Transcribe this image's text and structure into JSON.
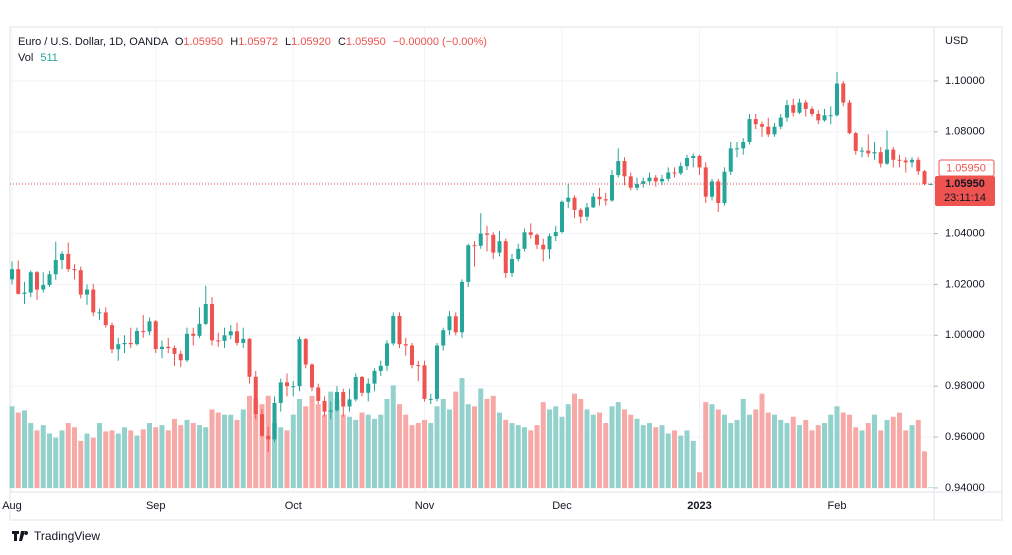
{
  "chart_data": {
    "type": "candlestick",
    "legend": {
      "symbol": "Euro / U.S. Dollar, 1D, OANDA",
      "open_label": "O",
      "open": "1.05950",
      "high_label": "H",
      "high": "1.05972",
      "low_label": "L",
      "low": "1.05920",
      "close_label": "C",
      "close": "1.05950",
      "change": "−0.00000 (−0.00%)",
      "volume_label": "Vol"
    },
    "y_label": "USD",
    "brand": "TradingView",
    "up_color": "#26a69a",
    "down_color": "#ef5350",
    "volume_up_color": "#93d2cc",
    "volume_down_color": "#f7a9a7",
    "ylim": [
      0.9384,
      1.1212
    ],
    "yticks": [
      {
        "value": 0.94,
        "label": "0.94000"
      },
      {
        "value": 0.96,
        "label": "0.96000"
      },
      {
        "value": 0.98,
        "label": "0.98000"
      },
      {
        "value": 1.0,
        "label": "1.00000"
      },
      {
        "value": 1.02,
        "label": "1.02000"
      },
      {
        "value": 1.04,
        "label": "1.04000"
      },
      {
        "value": 1.06,
        "label": "1.06000"
      },
      {
        "value": 1.08,
        "label": "1.08000"
      },
      {
        "value": 1.1,
        "label": "1.10000"
      }
    ],
    "grid": true,
    "last_price": {
      "value": 1.0595,
      "label": "1.05950"
    },
    "countdown": "23:11:14",
    "marker_label": "1.05950",
    "categories": [
      "Aug",
      null,
      null,
      null,
      null,
      null,
      null,
      null,
      null,
      null,
      null,
      null,
      null,
      null,
      null,
      null,
      null,
      null,
      null,
      null,
      null,
      null,
      null,
      "Sep",
      null,
      null,
      null,
      null,
      null,
      null,
      null,
      null,
      null,
      null,
      null,
      null,
      null,
      null,
      null,
      null,
      null,
      null,
      null,
      null,
      null,
      "Oct",
      null,
      null,
      null,
      null,
      null,
      null,
      null,
      null,
      null,
      null,
      null,
      null,
      null,
      null,
      null,
      null,
      null,
      null,
      null,
      null,
      "Nov",
      null,
      null,
      null,
      null,
      null,
      null,
      null,
      null,
      null,
      null,
      null,
      null,
      null,
      null,
      null,
      null,
      null,
      null,
      null,
      null,
      null,
      "Dec",
      null,
      null,
      null,
      null,
      null,
      null,
      null,
      null,
      null,
      null,
      null,
      null,
      null,
      null,
      null,
      null,
      null,
      null,
      null,
      null,
      null,
      "2023",
      null,
      null,
      null,
      null,
      null,
      null,
      null,
      null,
      null,
      null,
      null,
      null,
      null,
      null,
      null,
      null,
      null,
      null,
      null,
      null,
      null,
      "Feb",
      null,
      null,
      null,
      null,
      null,
      null,
      null,
      null,
      null,
      null,
      null,
      null,
      null,
      null,
      null
    ],
    "ohlc": [
      [
        1.022,
        1.029,
        1.02,
        1.026
      ],
      [
        1.026,
        1.0294,
        1.016,
        1.0163
      ],
      [
        1.0163,
        1.021,
        1.0123,
        1.0168
      ],
      [
        1.0168,
        1.0255,
        1.015,
        1.0248
      ],
      [
        1.0248,
        1.0253,
        1.014,
        1.018
      ],
      [
        1.018,
        1.0248,
        1.0168,
        1.0198
      ],
      [
        1.0198,
        1.0253,
        1.019,
        1.024
      ],
      [
        1.024,
        1.0368,
        1.0218,
        1.0296
      ],
      [
        1.0296,
        1.033,
        1.026,
        1.032
      ],
      [
        1.032,
        1.0365,
        1.025,
        1.026
      ],
      [
        1.026,
        1.028,
        1.022,
        1.0256
      ],
      [
        1.0256,
        1.027,
        1.0145,
        1.016
      ],
      [
        1.016,
        1.02,
        1.012,
        1.018
      ],
      [
        1.018,
        1.0202,
        1.0075,
        1.009
      ],
      [
        1.009,
        1.0105,
        1.006,
        1.009
      ],
      [
        1.009,
        1.011,
        1.003,
        1.004
      ],
      [
        1.004,
        1.005,
        0.993,
        0.9945
      ],
      [
        0.9945,
        0.999,
        0.99,
        0.9965
      ],
      [
        0.9965,
        1.0,
        0.993,
        0.997
      ],
      [
        0.997,
        1.003,
        0.995,
        0.9965
      ],
      [
        0.9965,
        1.003,
        0.996,
        1.0017
      ],
      [
        1.0017,
        1.008,
        0.999,
        1.0015
      ],
      [
        1.0015,
        1.007,
        1.0,
        1.0055
      ],
      [
        1.0055,
        1.006,
        0.993,
        0.9946
      ],
      [
        0.9946,
        0.998,
        0.991,
        0.9955
      ],
      [
        0.9955,
        0.999,
        0.993,
        0.995
      ],
      [
        0.995,
        0.996,
        0.988,
        0.9927
      ],
      [
        0.9927,
        0.994,
        0.9875,
        0.9902
      ],
      [
        0.9902,
        1.003,
        0.9895,
        1.0006
      ],
      [
        1.0006,
        1.003,
        0.996,
        0.9998
      ],
      [
        0.9998,
        1.011,
        0.999,
        1.0045
      ],
      [
        1.0045,
        1.0195,
        1.004,
        1.0123
      ],
      [
        1.0123,
        1.015,
        0.996,
        0.998
      ],
      [
        0.998,
        1.001,
        0.9955,
        0.9978
      ],
      [
        0.9978,
        1.003,
        0.995,
        1.0
      ],
      [
        1.0,
        1.004,
        0.9985,
        1.0016
      ],
      [
        1.0016,
        1.005,
        0.996,
        0.997
      ],
      [
        0.997,
        1.003,
        0.995,
        0.9986
      ],
      [
        0.9986,
        0.999,
        0.981,
        0.9837
      ],
      [
        0.9837,
        0.986,
        0.967,
        0.969
      ],
      [
        0.969,
        0.971,
        0.96,
        0.9605
      ],
      [
        0.9605,
        0.964,
        0.954,
        0.9591
      ],
      [
        0.9591,
        0.976,
        0.958,
        0.9734
      ],
      [
        0.9734,
        0.983,
        0.97,
        0.9815
      ],
      [
        0.9815,
        0.985,
        0.976,
        0.98
      ],
      [
        0.98,
        0.982,
        0.976,
        0.98
      ],
      [
        0.98,
        0.9995,
        0.978,
        0.9985
      ],
      [
        0.9985,
        0.999,
        0.987,
        0.9885
      ],
      [
        0.9885,
        0.989,
        0.978,
        0.9795
      ],
      [
        0.9795,
        0.981,
        0.973,
        0.9742
      ],
      [
        0.9742,
        0.976,
        0.968,
        0.97
      ],
      [
        0.97,
        0.974,
        0.967,
        0.9705
      ],
      [
        0.9705,
        0.98,
        0.97,
        0.9777
      ],
      [
        0.9777,
        0.979,
        0.968,
        0.972
      ],
      [
        0.972,
        0.979,
        0.97,
        0.9748
      ],
      [
        0.9748,
        0.985,
        0.974,
        0.9836
      ],
      [
        0.9836,
        0.984,
        0.976,
        0.9774
      ],
      [
        0.9774,
        0.983,
        0.974,
        0.981
      ],
      [
        0.981,
        0.987,
        0.978,
        0.986
      ],
      [
        0.986,
        0.99,
        0.984,
        0.988
      ],
      [
        0.988,
        0.998,
        0.986,
        0.9968
      ],
      [
        0.9968,
        1.009,
        0.996,
        1.0076
      ],
      [
        1.0076,
        1.009,
        0.995,
        0.9965
      ],
      [
        0.9965,
        0.999,
        0.992,
        0.996
      ],
      [
        0.996,
        0.997,
        0.987,
        0.9883
      ],
      [
        0.9883,
        0.99,
        0.982,
        0.9882
      ],
      [
        0.9882,
        0.99,
        0.974,
        0.975
      ],
      [
        0.975,
        0.977,
        0.973,
        0.975
      ],
      [
        0.975,
        0.997,
        0.974,
        0.996
      ],
      [
        0.996,
        1.003,
        0.994,
        1.002
      ],
      [
        1.002,
        1.0095,
        1.0,
        1.0075
      ],
      [
        1.0075,
        1.009,
        1.0,
        1.0012
      ],
      [
        1.0012,
        1.022,
        0.999,
        1.021
      ],
      [
        1.021,
        1.036,
        1.019,
        1.0354
      ],
      [
        1.0354,
        1.037,
        1.027,
        1.0352
      ],
      [
        1.0352,
        1.048,
        1.034,
        1.04
      ],
      [
        1.04,
        1.043,
        1.033,
        1.0395
      ],
      [
        1.0395,
        1.0405,
        1.03,
        1.0325
      ],
      [
        1.0325,
        1.041,
        1.031,
        1.037
      ],
      [
        1.037,
        1.038,
        1.0225,
        1.0245
      ],
      [
        1.0245,
        1.032,
        1.023,
        1.03
      ],
      [
        1.03,
        1.036,
        1.029,
        1.034
      ],
      [
        1.034,
        1.042,
        1.033,
        1.0405
      ],
      [
        1.0405,
        1.044,
        1.038,
        1.0395
      ],
      [
        1.0395,
        1.04,
        1.034,
        1.0356
      ],
      [
        1.0356,
        1.038,
        1.029,
        1.0338
      ],
      [
        1.0338,
        1.04,
        1.03,
        1.039
      ],
      [
        1.039,
        1.043,
        1.037,
        1.0406
      ],
      [
        1.0406,
        1.053,
        1.04,
        1.0525
      ],
      [
        1.0525,
        1.0595,
        1.05,
        1.0541
      ],
      [
        1.0541,
        1.055,
        1.046,
        1.0493
      ],
      [
        1.0493,
        1.05,
        1.044,
        1.0466
      ],
      [
        1.0466,
        1.052,
        1.045,
        1.0503
      ],
      [
        1.0503,
        1.056,
        1.05,
        1.0545
      ],
      [
        1.0545,
        1.058,
        1.051,
        1.0535
      ],
      [
        1.0535,
        1.056,
        1.051,
        1.053
      ],
      [
        1.053,
        1.065,
        1.0525,
        1.063
      ],
      [
        1.063,
        1.0735,
        1.062,
        1.0685
      ],
      [
        1.0685,
        1.07,
        1.059,
        1.0625
      ],
      [
        1.0625,
        1.064,
        1.057,
        1.058
      ],
      [
        1.058,
        1.062,
        1.057,
        1.0595
      ],
      [
        1.0595,
        1.062,
        1.058,
        1.0606
      ],
      [
        1.0606,
        1.064,
        1.059,
        1.062
      ],
      [
        1.062,
        1.063,
        1.0585,
        1.0605
      ],
      [
        1.0605,
        1.063,
        1.059,
        1.0615
      ],
      [
        1.0615,
        1.066,
        1.0605,
        1.064
      ],
      [
        1.064,
        1.066,
        1.062,
        1.0637
      ],
      [
        1.0637,
        1.068,
        1.063,
        1.0665
      ],
      [
        1.0665,
        1.071,
        1.065,
        1.0697
      ],
      [
        1.0697,
        1.0715,
        1.066,
        1.0705
      ],
      [
        1.0705,
        1.071,
        1.063,
        1.066
      ],
      [
        1.066,
        1.068,
        1.052,
        1.0545
      ],
      [
        1.0545,
        1.0615,
        1.053,
        1.0605
      ],
      [
        1.0605,
        1.0615,
        1.0485,
        1.052
      ],
      [
        1.052,
        1.066,
        1.051,
        1.0643
      ],
      [
        1.0643,
        1.076,
        1.063,
        1.0735
      ],
      [
        1.0735,
        1.076,
        1.07,
        1.0735
      ],
      [
        1.0735,
        1.0775,
        1.071,
        1.076
      ],
      [
        1.076,
        1.087,
        1.075,
        1.085
      ],
      [
        1.085,
        1.087,
        1.081,
        1.083
      ],
      [
        1.083,
        1.084,
        1.078,
        1.082
      ],
      [
        1.082,
        1.0855,
        1.078,
        1.079
      ],
      [
        1.079,
        1.0835,
        1.078,
        1.082
      ],
      [
        1.082,
        1.087,
        1.081,
        1.0856
      ],
      [
        1.0856,
        1.0925,
        1.084,
        1.0905
      ],
      [
        1.0905,
        1.093,
        1.086,
        1.0875
      ],
      [
        1.0875,
        1.093,
        1.087,
        1.0915
      ],
      [
        1.0915,
        1.0925,
        1.086,
        1.089
      ],
      [
        1.089,
        1.09,
        1.086,
        1.087
      ],
      [
        1.087,
        1.0885,
        1.083,
        1.0845
      ],
      [
        1.0845,
        1.089,
        1.084,
        1.0865
      ],
      [
        1.0865,
        1.09,
        1.083,
        1.0865
      ],
      [
        1.0865,
        1.1035,
        1.086,
        1.099
      ],
      [
        1.099,
        1.1,
        1.09,
        1.0915
      ],
      [
        1.0915,
        1.0925,
        1.079,
        1.0795
      ],
      [
        1.0795,
        1.08,
        1.071,
        1.0725
      ],
      [
        1.0725,
        1.074,
        1.07,
        1.0726
      ],
      [
        1.0726,
        1.079,
        1.07,
        1.0715
      ],
      [
        1.0715,
        1.076,
        1.069,
        1.072
      ],
      [
        1.072,
        1.074,
        1.066,
        1.0675
      ],
      [
        1.0675,
        1.0805,
        1.067,
        1.073
      ],
      [
        1.073,
        1.074,
        1.066,
        1.069
      ],
      [
        1.069,
        1.071,
        1.066,
        1.0687
      ],
      [
        1.0687,
        1.07,
        1.064,
        1.068
      ],
      [
        1.068,
        1.07,
        1.066,
        1.069
      ],
      [
        1.069,
        1.07,
        1.063,
        1.0645
      ],
      [
        1.0645,
        1.065,
        1.059,
        1.0595
      ],
      [
        1.0595,
        1.05972,
        1.0592,
        1.0595
      ]
    ],
    "volume": [
      78000,
      72000,
      74000,
      62000,
      55000,
      60000,
      52000,
      48000,
      55000,
      62000,
      58000,
      45000,
      52000,
      48000,
      62000,
      54000,
      55000,
      52000,
      58000,
      55000,
      50000,
      56000,
      62000,
      58000,
      60000,
      55000,
      66000,
      60000,
      65000,
      62000,
      60000,
      58000,
      75000,
      72000,
      70000,
      70000,
      65000,
      75000,
      88000,
      85000,
      80000,
      88000,
      62000,
      58000,
      55000,
      70000,
      85000,
      78000,
      88000,
      80000,
      70000,
      92000,
      85000,
      70000,
      68000,
      65000,
      72000,
      70000,
      66000,
      70000,
      85000,
      98000,
      80000,
      70000,
      60000,
      62000,
      65000,
      62000,
      78000,
      85000,
      75000,
      92000,
      105000,
      80000,
      78000,
      95000,
      85000,
      88000,
      72000,
      65000,
      62000,
      60000,
      58000,
      55000,
      60000,
      82000,
      75000,
      78000,
      68000,
      80000,
      90000,
      85000,
      75000,
      70000,
      72000,
      62000,
      78000,
      82000,
      75000,
      70000,
      66000,
      60000,
      62000,
      58000,
      60000,
      52000,
      55000,
      50000,
      55000,
      45000,
      15000,
      82000,
      80000,
      75000,
      70000,
      62000,
      65000,
      85000,
      70000,
      75000,
      90000,
      72000,
      70000,
      65000,
      62000,
      68000,
      60000,
      65000,
      55000,
      60000,
      62000,
      70000,
      78000,
      72000,
      70000,
      58000,
      55000,
      62000,
      70000,
      55000,
      65000,
      68000,
      72000,
      55000,
      60000,
      65000,
      35000,
      511
    ]
  }
}
